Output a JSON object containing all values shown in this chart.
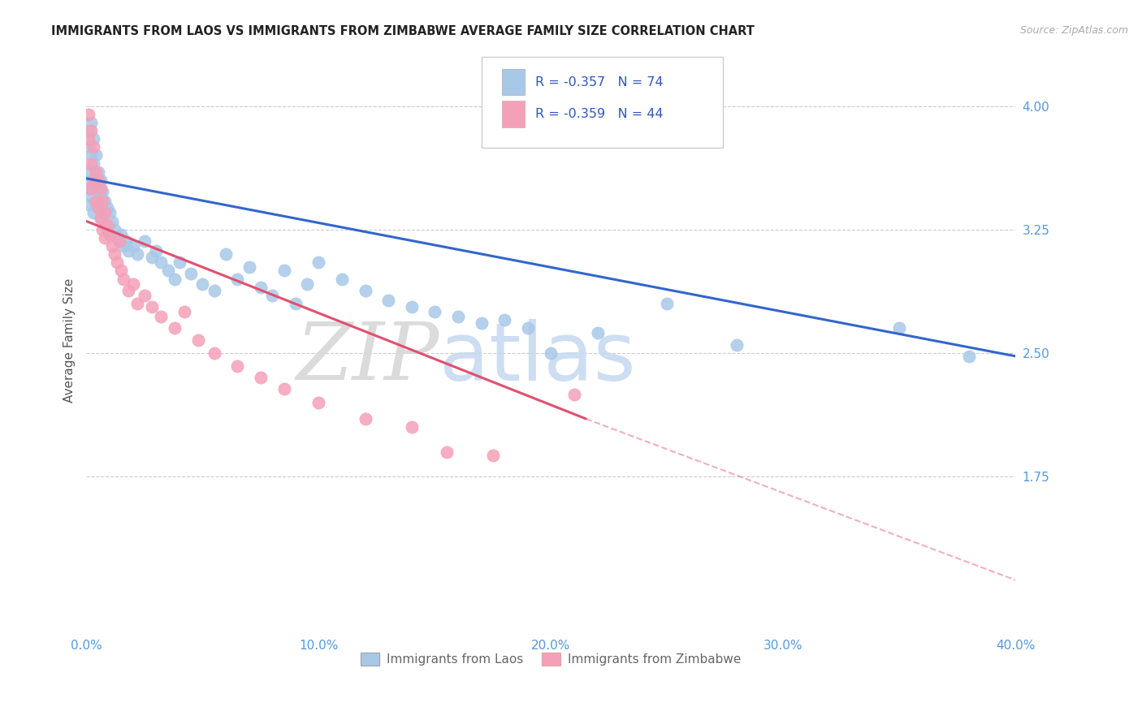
{
  "title": "IMMIGRANTS FROM LAOS VS IMMIGRANTS FROM ZIMBABWE AVERAGE FAMILY SIZE CORRELATION CHART",
  "source": "Source: ZipAtlas.com",
  "ylabel": "Average Family Size",
  "xlim": [
    0.0,
    0.4
  ],
  "ylim": [
    0.8,
    4.35
  ],
  "right_yticks": [
    4.0,
    3.25,
    2.5,
    1.75
  ],
  "xtick_labels": [
    "0.0%",
    "10.0%",
    "20.0%",
    "30.0%",
    "40.0%"
  ],
  "xtick_vals": [
    0.0,
    0.1,
    0.2,
    0.3,
    0.4
  ],
  "laos_legend_label": "Immigrants from Laos",
  "zimbabwe_legend_label": "Immigrants from Zimbabwe",
  "blue_scatter_color": "#a8c8e8",
  "pink_scatter_color": "#f4a0b8",
  "blue_line_color": "#3366cc",
  "pink_line_color": "#e05070",
  "blue_line": {
    "x0": 0.0,
    "y0": 3.56,
    "x1": 0.4,
    "y1": 2.48
  },
  "pink_line_solid": {
    "x0": 0.0,
    "y0": 3.3,
    "x1": 0.215,
    "y1": 2.1
  },
  "pink_line_dashed": {
    "x0": 0.215,
    "y0": 2.1,
    "x1": 0.4,
    "y1": 1.12
  },
  "laos_scatter_x": [
    0.001,
    0.001,
    0.001,
    0.001,
    0.001,
    0.002,
    0.002,
    0.002,
    0.002,
    0.003,
    0.003,
    0.003,
    0.003,
    0.004,
    0.004,
    0.004,
    0.005,
    0.005,
    0.005,
    0.006,
    0.006,
    0.006,
    0.007,
    0.007,
    0.008,
    0.008,
    0.009,
    0.009,
    0.01,
    0.01,
    0.011,
    0.012,
    0.013,
    0.014,
    0.015,
    0.016,
    0.017,
    0.018,
    0.02,
    0.022,
    0.025,
    0.028,
    0.03,
    0.032,
    0.035,
    0.038,
    0.04,
    0.045,
    0.05,
    0.055,
    0.06,
    0.065,
    0.07,
    0.075,
    0.08,
    0.085,
    0.09,
    0.095,
    0.1,
    0.11,
    0.12,
    0.13,
    0.14,
    0.15,
    0.16,
    0.17,
    0.18,
    0.19,
    0.2,
    0.22,
    0.25,
    0.28,
    0.35,
    0.38
  ],
  "laos_scatter_y": [
    3.85,
    3.75,
    3.6,
    3.5,
    3.4,
    3.9,
    3.7,
    3.55,
    3.45,
    3.8,
    3.65,
    3.5,
    3.35,
    3.7,
    3.55,
    3.4,
    3.6,
    3.5,
    3.38,
    3.55,
    3.45,
    3.32,
    3.48,
    3.35,
    3.42,
    3.28,
    3.38,
    3.25,
    3.35,
    3.22,
    3.3,
    3.25,
    3.2,
    3.18,
    3.22,
    3.15,
    3.18,
    3.12,
    3.15,
    3.1,
    3.18,
    3.08,
    3.12,
    3.05,
    3.0,
    2.95,
    3.05,
    2.98,
    2.92,
    2.88,
    3.1,
    2.95,
    3.02,
    2.9,
    2.85,
    3.0,
    2.8,
    2.92,
    3.05,
    2.95,
    2.88,
    2.82,
    2.78,
    2.75,
    2.72,
    2.68,
    2.7,
    2.65,
    2.5,
    2.62,
    2.8,
    2.55,
    2.65,
    2.48
  ],
  "zimbabwe_scatter_x": [
    0.001,
    0.001,
    0.002,
    0.002,
    0.002,
    0.003,
    0.003,
    0.004,
    0.004,
    0.005,
    0.005,
    0.006,
    0.006,
    0.007,
    0.007,
    0.008,
    0.008,
    0.009,
    0.01,
    0.011,
    0.012,
    0.013,
    0.014,
    0.015,
    0.016,
    0.018,
    0.02,
    0.022,
    0.025,
    0.028,
    0.032,
    0.038,
    0.042,
    0.048,
    0.055,
    0.065,
    0.075,
    0.085,
    0.1,
    0.12,
    0.14,
    0.155,
    0.175,
    0.21
  ],
  "zimbabwe_scatter_y": [
    3.95,
    3.8,
    3.85,
    3.65,
    3.5,
    3.75,
    3.55,
    3.6,
    3.42,
    3.55,
    3.38,
    3.5,
    3.32,
    3.42,
    3.25,
    3.35,
    3.2,
    3.28,
    3.22,
    3.15,
    3.1,
    3.05,
    3.18,
    3.0,
    2.95,
    2.88,
    2.92,
    2.8,
    2.85,
    2.78,
    2.72,
    2.65,
    2.75,
    2.58,
    2.5,
    2.42,
    2.35,
    2.28,
    2.2,
    2.1,
    2.05,
    1.9,
    1.88,
    2.25
  ]
}
